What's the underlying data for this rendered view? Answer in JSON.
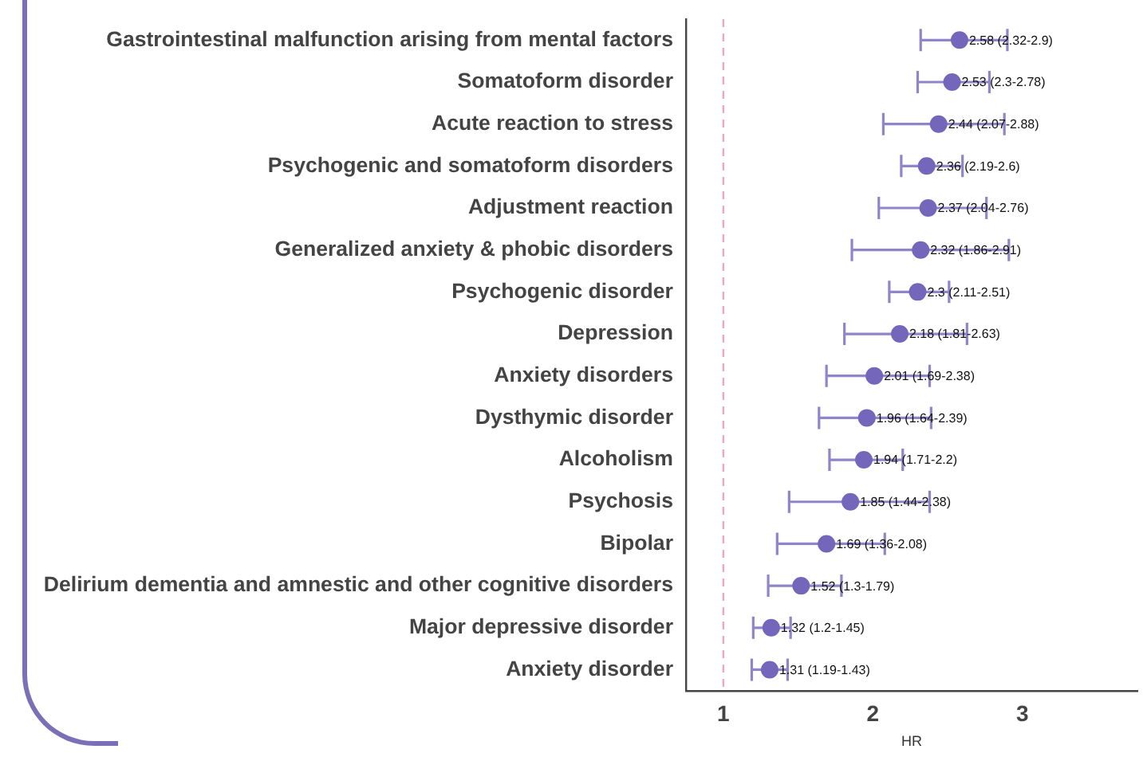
{
  "chart_data": {
    "type": "scatter",
    "xlabel": "HR",
    "categories": [
      "Gastrointestinal malfunction arising from mental factors",
      "Somatoform disorder",
      "Acute reaction to stress",
      "Psychogenic and somatoform disorders",
      "Adjustment reaction",
      "Generalized anxiety & phobic disorders",
      "Psychogenic disorder",
      "Depression",
      "Anxiety disorders",
      "Dysthymic disorder",
      "Alcoholism",
      "Psychosis",
      "Bipolar",
      "Delirium dementia and amnestic and other cognitive disorders",
      "Major depressive disorder",
      "Anxiety disorder"
    ],
    "values": [
      2.58,
      2.53,
      2.44,
      2.36,
      2.37,
      2.32,
      2.3,
      2.18,
      2.01,
      1.96,
      1.94,
      1.85,
      1.69,
      1.52,
      1.32,
      1.31
    ],
    "errors": [
      [
        2.32,
        2.9
      ],
      [
        2.3,
        2.78
      ],
      [
        2.07,
        2.88
      ],
      [
        2.19,
        2.6
      ],
      [
        2.04,
        2.76
      ],
      [
        1.86,
        2.91
      ],
      [
        2.11,
        2.51
      ],
      [
        1.81,
        2.63
      ],
      [
        1.69,
        2.38
      ],
      [
        1.64,
        2.39
      ],
      [
        1.71,
        2.2
      ],
      [
        1.44,
        2.38
      ],
      [
        1.36,
        2.08
      ],
      [
        1.3,
        1.79
      ],
      [
        1.2,
        1.45
      ],
      [
        1.19,
        1.43
      ]
    ],
    "value_labels": [
      "2.58 (2.32-2.9)",
      "2.53 (2.3-2.78)",
      "2.44 (2.07-2.88)",
      "2.36 (2.19-2.6)",
      "2.37 (2.04-2.76)",
      "2.32 (1.86-2.91)",
      "2.3 (2.11-2.51)",
      "2.18 (1.81-2.63)",
      "2.01 (1.69-2.38)",
      "1.96 (1.64-2.39)",
      "1.94 (1.71-2.2)",
      "1.85 (1.44-2.38)",
      "1.69 (1.36-2.08)",
      "1.52 (1.3-1.79)",
      "1.32 (1.2-1.45)",
      "1.31 (1.19-1.43)"
    ],
    "color": "#7467bb",
    "marker": "circle",
    "orientation": "horizontal",
    "xlim": [
      0.75,
      3.77
    ],
    "xticks": [
      1,
      2,
      3
    ],
    "grid": false,
    "legend": false,
    "ref_lines": [
      {
        "axis": "x",
        "value": 1,
        "color": "#f0a8c0",
        "line_style": "dashed"
      }
    ]
  }
}
